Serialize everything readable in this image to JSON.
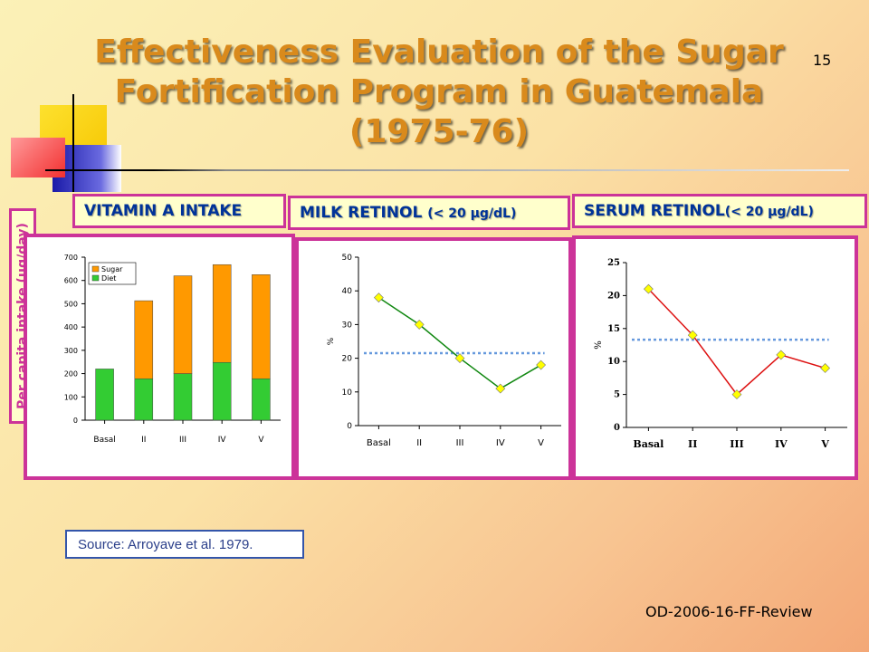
{
  "slide": {
    "title": "Effectiveness Evaluation of the Sugar Fortification Program in Guatemala (1975-76)",
    "number": "15",
    "source": "Source: Arroyave et al. 1979.",
    "footer": "OD-2006-16-FF-Review"
  },
  "headers": {
    "vitamin_a": "VITAMIN A INTAKE",
    "milk_main": "MILK RETINOL ",
    "milk_unit": "(< 20 µg/dL)",
    "serum_main": "SERUM RETINOL",
    "serum_unit": "(< 20 µg/dL)"
  },
  "ylabel_outer": "Per capita intake (µg/day)",
  "colors": {
    "accent_border": "#cc3399",
    "sugar": "#ff9900",
    "diet": "#33cc33",
    "line_milk": "#118811",
    "line_serum": "#dd1111",
    "marker": "#ffff00",
    "threshold": "#6699dd"
  },
  "chart_data": [
    {
      "type": "bar",
      "stacked": true,
      "categories": [
        "Basal",
        "II",
        "III",
        "IV",
        "V"
      ],
      "series": [
        {
          "name": "Diet",
          "values": [
            220,
            178,
            200,
            248,
            178
          ]
        },
        {
          "name": "Sugar",
          "values": [
            0,
            335,
            420,
            420,
            447
          ]
        }
      ],
      "ylim": [
        0,
        700
      ],
      "yticks": [
        0,
        100,
        200,
        300,
        400,
        500,
        600,
        700
      ],
      "legend": "top-left",
      "grid": false
    },
    {
      "type": "line",
      "categories": [
        "Basal",
        "II",
        "III",
        "IV",
        "V"
      ],
      "values": [
        38,
        30,
        20,
        11,
        18
      ],
      "ylabel": "%",
      "ylim": [
        0,
        50
      ],
      "yticks": [
        0,
        10,
        20,
        30,
        40,
        50
      ],
      "reference_line": 21.5,
      "grid": false
    },
    {
      "type": "line",
      "categories": [
        "Basal",
        "II",
        "III",
        "IV",
        "V"
      ],
      "values": [
        21,
        14,
        5,
        11,
        9
      ],
      "ylabel": "%",
      "ylim": [
        0,
        25
      ],
      "yticks": [
        0,
        5,
        10,
        15,
        20,
        25
      ],
      "reference_line": 13.3,
      "grid": false
    }
  ]
}
